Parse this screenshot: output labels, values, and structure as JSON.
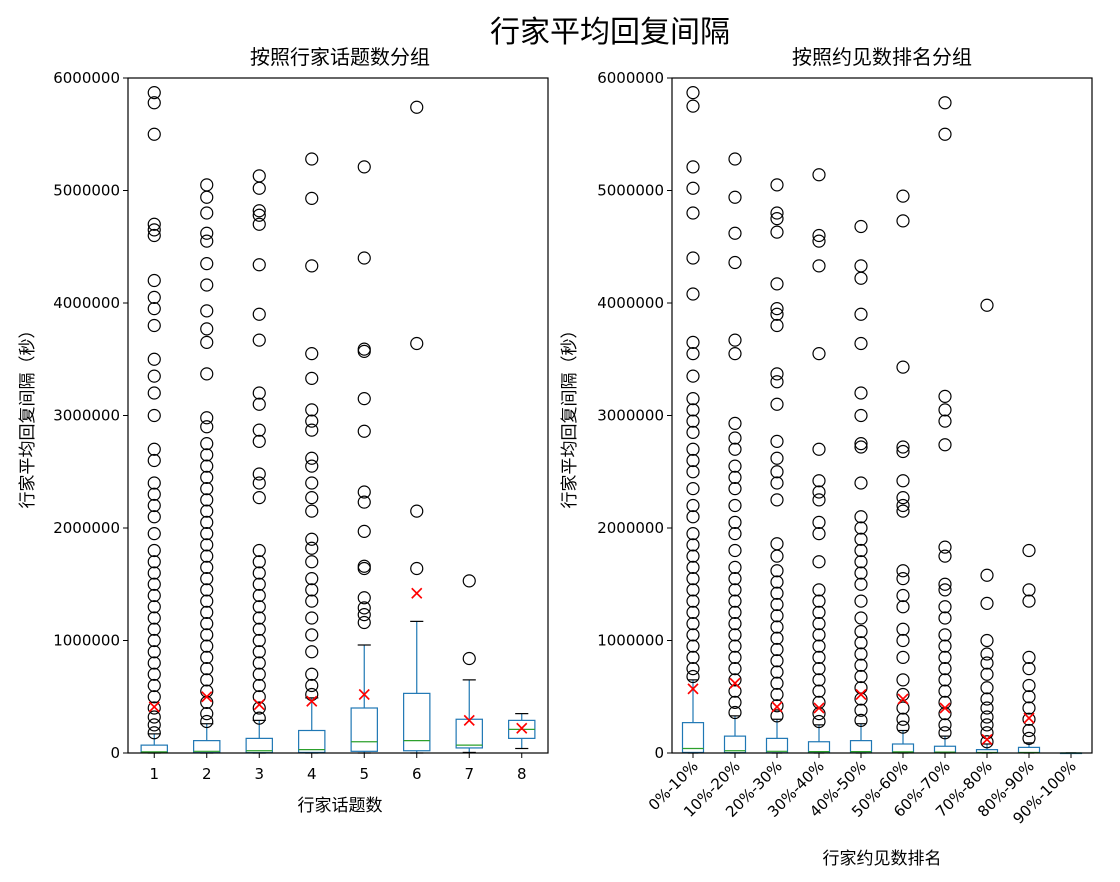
{
  "figure": {
    "title": "行家平均回复间隔"
  },
  "chart_data": [
    {
      "type": "box",
      "title": "按照行家话题数分组",
      "xlabel": "行家话题数",
      "ylabel": "行家平均回复间隔（秒）",
      "ylim": [
        0,
        6000000
      ],
      "yticks": [
        0,
        1000000,
        2000000,
        3000000,
        4000000,
        5000000,
        6000000
      ],
      "colors": {
        "box": "#1f77b4",
        "median": "#2ca02c",
        "mean": "#ff0000",
        "flier": "#000000"
      },
      "categories": [
        "1",
        "2",
        "3",
        "4",
        "5",
        "6",
        "7",
        "8"
      ],
      "boxes": [
        {
          "label": "1",
          "whislo": 0,
          "q1": 2000,
          "med": 10000,
          "q3": 70000,
          "whishi": 170000,
          "mean": 410000,
          "fliers": [
            180000,
            250000,
            320000,
            400000,
            500000,
            600000,
            700000,
            800000,
            900000,
            1000000,
            1100000,
            1200000,
            1300000,
            1400000,
            1500000,
            1600000,
            1700000,
            1800000,
            1950000,
            2100000,
            2200000,
            2300000,
            2400000,
            2600000,
            2700000,
            3000000,
            3200000,
            3350000,
            3500000,
            3800000,
            3950000,
            4050000,
            4200000,
            4600000,
            4650000,
            4700000,
            5500000,
            5780000,
            5870000
          ]
        },
        {
          "label": "2",
          "whislo": 0,
          "q1": 3000,
          "med": 15000,
          "q3": 110000,
          "whishi": 260000,
          "mean": 500000,
          "fliers": [
            280000,
            350000,
            450000,
            550000,
            650000,
            750000,
            850000,
            950000,
            1050000,
            1150000,
            1250000,
            1350000,
            1450000,
            1550000,
            1650000,
            1750000,
            1850000,
            1950000,
            2050000,
            2150000,
            2250000,
            2350000,
            2450000,
            2550000,
            2650000,
            2750000,
            2900000,
            2980000,
            3370000,
            3650000,
            3770000,
            3930000,
            4160000,
            4350000,
            4550000,
            4620000,
            4800000,
            4940000,
            5050000
          ]
        },
        {
          "label": "3",
          "whislo": 0,
          "q1": 3000,
          "med": 20000,
          "q3": 130000,
          "whishi": 290000,
          "mean": 430000,
          "fliers": [
            310000,
            400000,
            500000,
            600000,
            700000,
            800000,
            900000,
            1000000,
            1100000,
            1200000,
            1300000,
            1400000,
            1500000,
            1600000,
            1700000,
            1800000,
            2270000,
            2400000,
            2480000,
            2770000,
            2870000,
            3100000,
            3200000,
            3670000,
            3900000,
            4340000,
            4700000,
            4780000,
            4820000,
            5020000,
            5130000
          ]
        },
        {
          "label": "4",
          "whislo": 0,
          "q1": 5000,
          "med": 30000,
          "q3": 200000,
          "whishi": 490000,
          "mean": 460000,
          "fliers": [
            520000,
            600000,
            700000,
            900000,
            1050000,
            1200000,
            1350000,
            1450000,
            1550000,
            1700000,
            1820000,
            1900000,
            2150000,
            2270000,
            2400000,
            2550000,
            2620000,
            2870000,
            2950000,
            3050000,
            3330000,
            3550000,
            4330000,
            4930000,
            5280000
          ]
        },
        {
          "label": "5",
          "whislo": 0,
          "q1": 15000,
          "med": 100000,
          "q3": 400000,
          "whishi": 960000,
          "mean": 520000,
          "fliers": [
            1160000,
            1230000,
            1290000,
            1380000,
            1640000,
            1660000,
            1970000,
            2230000,
            2320000,
            2860000,
            3150000,
            3570000,
            3590000,
            4400000,
            5210000
          ]
        },
        {
          "label": "6",
          "whislo": 0,
          "q1": 20000,
          "med": 110000,
          "q3": 530000,
          "whishi": 1170000,
          "mean": 1420000,
          "fliers": [
            1640000,
            2150000,
            3640000,
            5740000
          ]
        },
        {
          "label": "7",
          "whislo": 5000,
          "q1": 45000,
          "med": 70000,
          "q3": 300000,
          "whishi": 650000,
          "mean": 290000,
          "fliers": [
            840000,
            1530000
          ]
        },
        {
          "label": "8",
          "whislo": 40000,
          "q1": 130000,
          "med": 210000,
          "q3": 290000,
          "whishi": 350000,
          "mean": 220000,
          "fliers": []
        }
      ]
    },
    {
      "type": "box",
      "title": "按照约见数排名分组",
      "xlabel": "行家约见数排名",
      "ylabel": "行家平均回复间隔（秒）",
      "ylim": [
        0,
        6000000
      ],
      "yticks": [
        0,
        1000000,
        2000000,
        3000000,
        4000000,
        5000000,
        6000000
      ],
      "colors": {
        "box": "#1f77b4",
        "median": "#2ca02c",
        "mean": "#ff0000",
        "flier": "#000000"
      },
      "categories": [
        "0%-10%",
        "10%-20%",
        "20%-30%",
        "30%-40%",
        "40%-50%",
        "50%-60%",
        "60%-70%",
        "70%-80%",
        "80%-90%",
        "90%-100%"
      ],
      "boxes": [
        {
          "label": "0%-10%",
          "whislo": 0,
          "q1": 5000,
          "med": 40000,
          "q3": 270000,
          "whishi": 650000,
          "mean": 570000,
          "fliers": [
            680000,
            750000,
            850000,
            950000,
            1050000,
            1150000,
            1250000,
            1350000,
            1450000,
            1550000,
            1650000,
            1750000,
            1850000,
            1950000,
            2100000,
            2200000,
            2350000,
            2500000,
            2600000,
            2700000,
            2850000,
            2950000,
            3050000,
            3150000,
            3350000,
            3550000,
            3650000,
            4080000,
            4400000,
            4800000,
            5020000,
            5210000,
            5750000,
            5870000
          ]
        },
        {
          "label": "10%-20%",
          "whislo": 0,
          "q1": 3000,
          "med": 20000,
          "q3": 150000,
          "whishi": 330000,
          "mean": 620000,
          "fliers": [
            360000,
            450000,
            550000,
            650000,
            750000,
            850000,
            950000,
            1050000,
            1150000,
            1250000,
            1350000,
            1450000,
            1550000,
            1650000,
            1800000,
            1950000,
            2050000,
            2200000,
            2350000,
            2450000,
            2550000,
            2700000,
            2800000,
            2930000,
            3550000,
            3670000,
            4360000,
            4620000,
            4940000,
            5280000
          ]
        },
        {
          "label": "20%-30%",
          "whislo": 0,
          "q1": 2000,
          "med": 15000,
          "q3": 130000,
          "whishi": 300000,
          "mean": 410000,
          "fliers": [
            330000,
            420000,
            520000,
            620000,
            720000,
            820000,
            920000,
            1020000,
            1120000,
            1220000,
            1320000,
            1420000,
            1520000,
            1620000,
            1750000,
            1860000,
            2250000,
            2400000,
            2500000,
            2620000,
            2770000,
            3100000,
            3300000,
            3370000,
            3800000,
            3900000,
            3950000,
            4170000,
            4630000,
            4750000,
            4800000,
            5050000
          ]
        },
        {
          "label": "30%-40%",
          "whislo": 0,
          "q1": 2000,
          "med": 12000,
          "q3": 100000,
          "whishi": 250000,
          "mean": 400000,
          "fliers": [
            280000,
            350000,
            450000,
            550000,
            650000,
            750000,
            850000,
            950000,
            1050000,
            1150000,
            1250000,
            1350000,
            1450000,
            1700000,
            1950000,
            2050000,
            2250000,
            2320000,
            2420000,
            2700000,
            3550000,
            4330000,
            4550000,
            4600000,
            5140000
          ]
        },
        {
          "label": "40%-50%",
          "whislo": 0,
          "q1": 2000,
          "med": 12000,
          "q3": 110000,
          "whishi": 260000,
          "mean": 520000,
          "fliers": [
            290000,
            380000,
            480000,
            580000,
            680000,
            780000,
            880000,
            980000,
            1080000,
            1200000,
            1350000,
            1500000,
            1600000,
            1700000,
            1800000,
            1900000,
            2000000,
            2100000,
            2400000,
            2720000,
            2750000,
            3000000,
            3200000,
            3640000,
            3900000,
            4220000,
            4330000,
            4680000
          ]
        },
        {
          "label": "50%-60%",
          "whislo": 0,
          "q1": 2000,
          "med": 10000,
          "q3": 80000,
          "whishi": 200000,
          "mean": 480000,
          "fliers": [
            230000,
            300000,
            400000,
            520000,
            650000,
            850000,
            1000000,
            1100000,
            1300000,
            1400000,
            1550000,
            1620000,
            2150000,
            2200000,
            2270000,
            2420000,
            2680000,
            2720000,
            3430000,
            4730000,
            4950000
          ]
        },
        {
          "label": "60%-70%",
          "whislo": 0,
          "q1": 1000,
          "med": 8000,
          "q3": 60000,
          "whishi": 150000,
          "mean": 400000,
          "fliers": [
            180000,
            250000,
            350000,
            450000,
            550000,
            650000,
            750000,
            850000,
            950000,
            1050000,
            1200000,
            1300000,
            1450000,
            1500000,
            1750000,
            1830000,
            2740000,
            2950000,
            3050000,
            3170000,
            5500000,
            5780000
          ]
        },
        {
          "label": "70%-80%",
          "whislo": 0,
          "q1": 1000,
          "med": 5000,
          "q3": 30000,
          "whishi": 80000,
          "mean": 120000,
          "fliers": [
            100000,
            180000,
            250000,
            320000,
            400000,
            480000,
            580000,
            700000,
            800000,
            880000,
            1000000,
            1330000,
            1580000,
            3980000
          ]
        },
        {
          "label": "80%-90%",
          "whislo": 0,
          "q1": 1000,
          "med": 5000,
          "q3": 50000,
          "whishi": 90000,
          "mean": 310000,
          "fliers": [
            130000,
            200000,
            300000,
            400000,
            500000,
            600000,
            750000,
            850000,
            1350000,
            1450000,
            1800000
          ]
        },
        {
          "label": "90%-100%",
          "whislo": 0,
          "q1": 0,
          "med": 0,
          "q3": 0,
          "whishi": 0,
          "mean": null,
          "fliers": []
        }
      ]
    }
  ]
}
